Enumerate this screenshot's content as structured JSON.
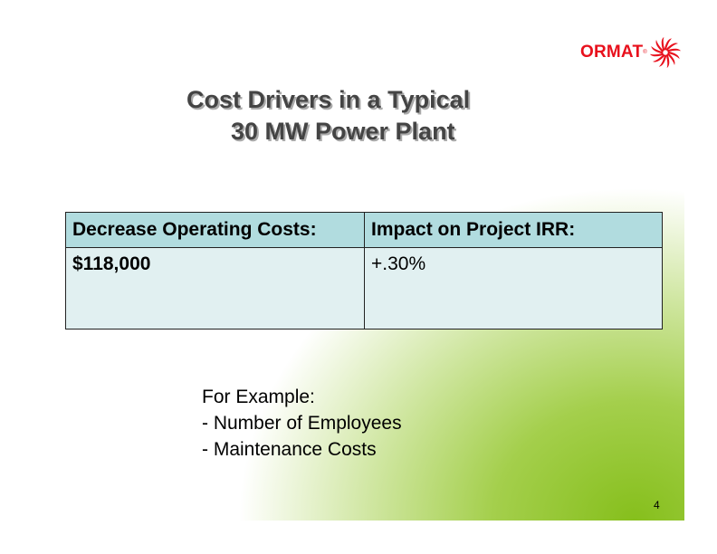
{
  "logo": {
    "text": "ORMAT",
    "mark": "®"
  },
  "title": {
    "line1": "Cost Drivers in a Typical",
    "line2": "30 MW Power Plant"
  },
  "table": {
    "headers": [
      "Decrease Operating Costs:",
      "Impact on Project IRR:"
    ],
    "row": [
      "$118,000",
      "+.30%"
    ]
  },
  "examples": {
    "heading": "For Example:",
    "items": [
      "- Number of Employees",
      "- Maintenance Costs"
    ]
  },
  "page_number": "4",
  "colors": {
    "brand_red": "#e8101c",
    "header_cell": "#b1dcdf",
    "body_cell": "#e1f0f1",
    "accent_green": "#86bf1c"
  }
}
